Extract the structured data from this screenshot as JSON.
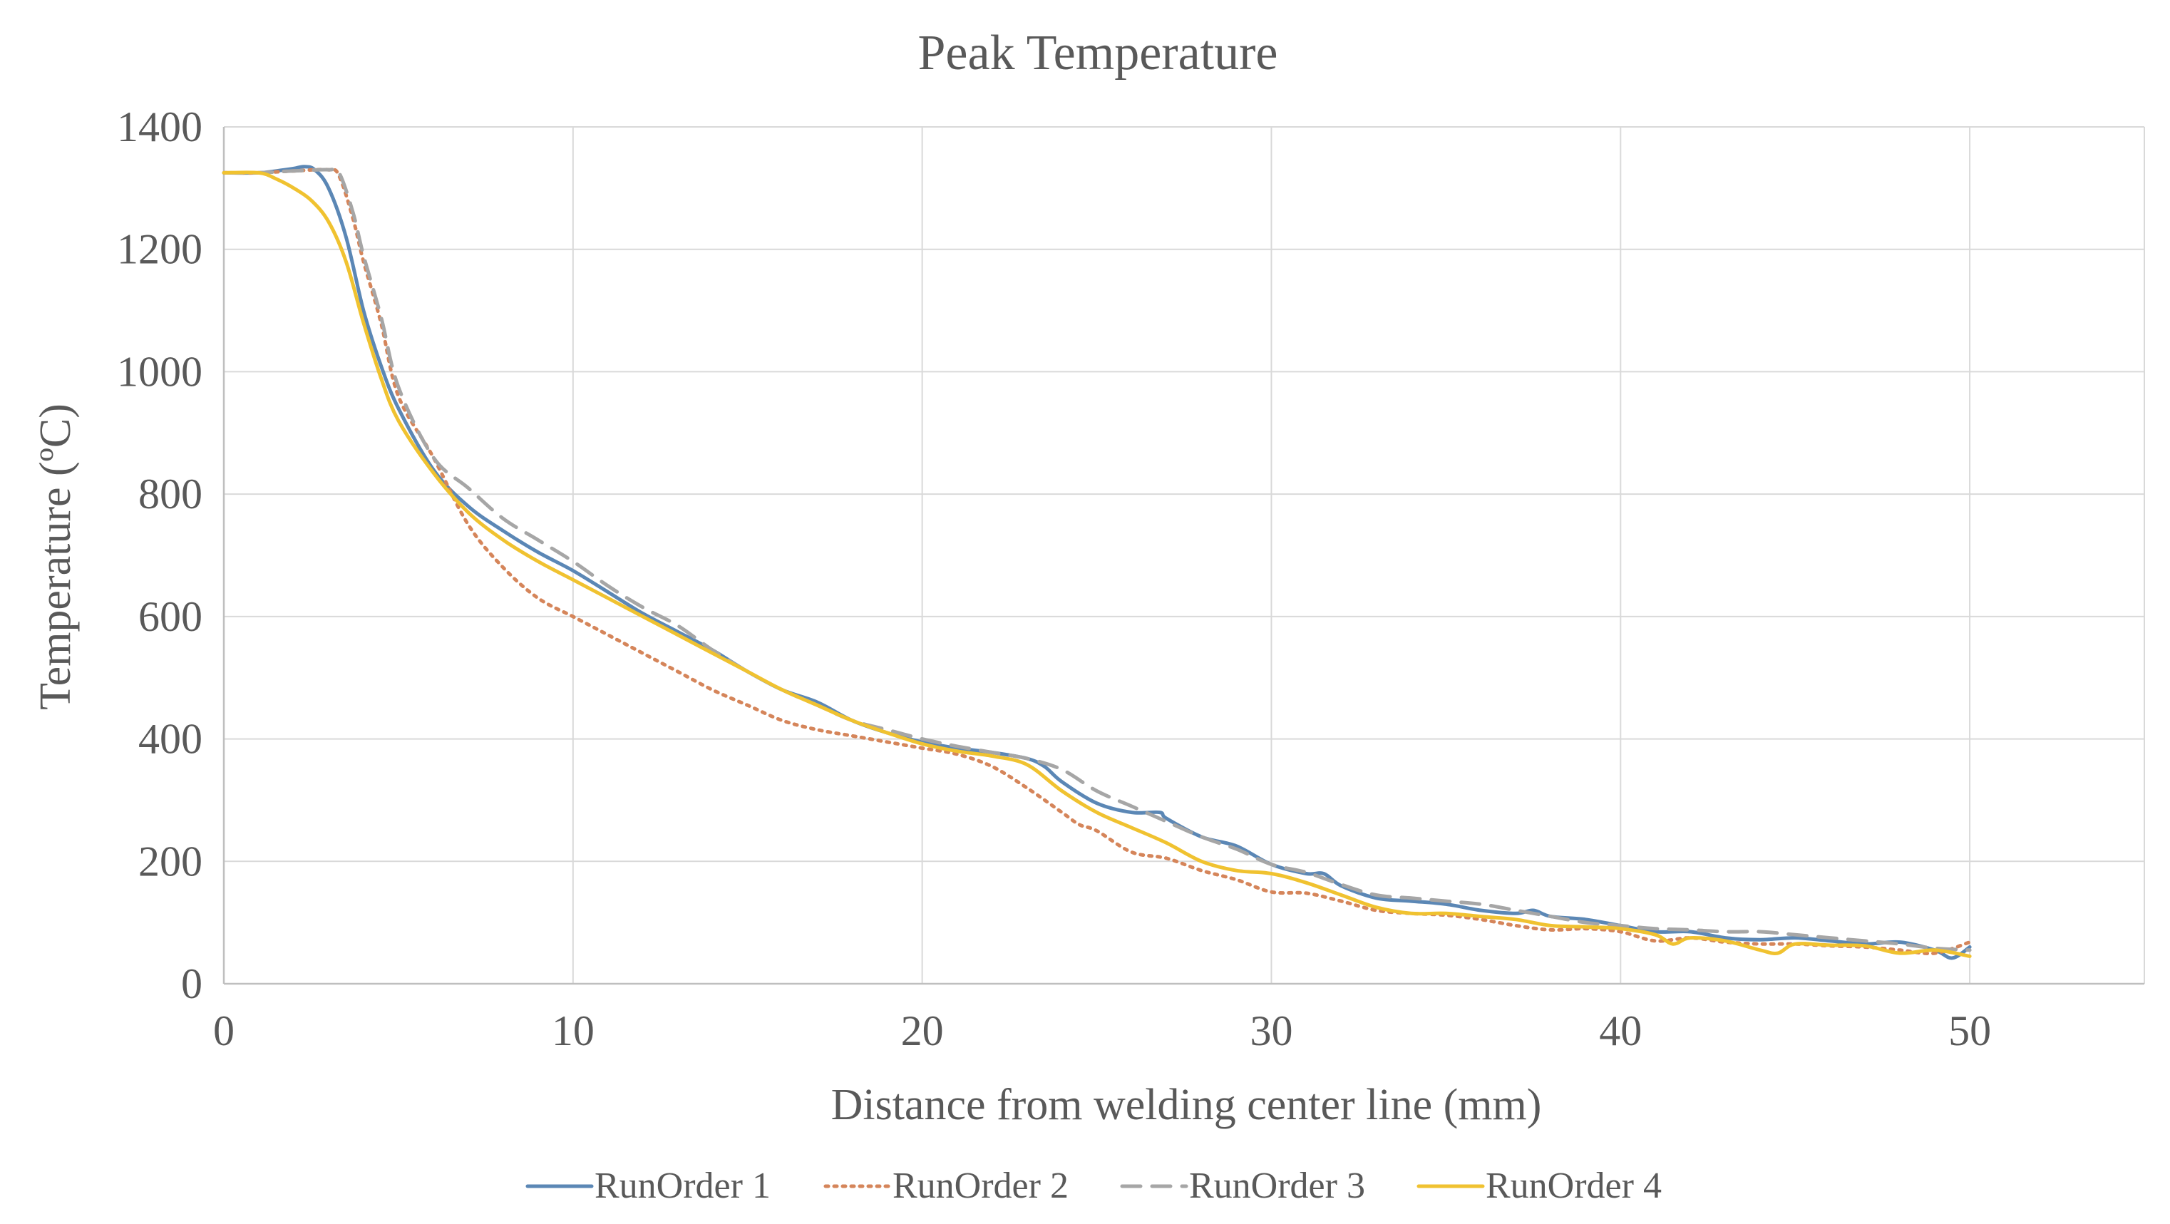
{
  "chart_data": {
    "type": "line",
    "title": "Peak Temperature",
    "xlabel": "Distance from welding center line (mm)",
    "ylabel": "Temperature (ºC)",
    "xlim": [
      0,
      55
    ],
    "ylim": [
      0,
      1400
    ],
    "xticks": [
      0,
      10,
      20,
      30,
      40,
      50
    ],
    "yticks": [
      0,
      200,
      400,
      600,
      800,
      1000,
      1200,
      1400
    ],
    "grid": true,
    "legend": "bottom-center",
    "series": [
      {
        "name": "RunOrder 1",
        "color": "#5b87b5",
        "dash": "solid",
        "x": [
          0,
          1,
          1.5,
          2,
          2.3,
          2.6,
          3,
          3.5,
          4,
          4.5,
          5,
          6,
          7,
          8,
          9,
          10,
          11,
          12,
          13,
          14,
          15,
          16,
          17,
          18,
          19,
          20,
          21,
          22,
          23,
          23.5,
          24,
          25,
          26,
          26.8,
          27,
          28,
          29,
          30,
          31,
          31.5,
          32,
          33,
          34,
          35,
          36,
          37,
          37.5,
          38,
          39,
          40,
          41,
          42,
          43,
          44,
          45,
          46,
          47,
          48,
          49,
          49.5,
          50
        ],
        "y": [
          1325,
          1325,
          1328,
          1332,
          1335,
          1330,
          1300,
          1220,
          1100,
          1010,
          940,
          840,
          780,
          740,
          705,
          675,
          640,
          605,
          575,
          545,
          510,
          480,
          460,
          430,
          410,
          395,
          385,
          378,
          368,
          355,
          330,
          295,
          280,
          280,
          270,
          240,
          225,
          195,
          180,
          180,
          160,
          140,
          135,
          130,
          120,
          115,
          120,
          110,
          105,
          95,
          85,
          85,
          75,
          72,
          75,
          70,
          65,
          68,
          55,
          42,
          60
        ]
      },
      {
        "name": "RunOrder 2",
        "color": "#d5855a",
        "dash": "dotted",
        "x": [
          0,
          1,
          2,
          3,
          3.3,
          3.7,
          4,
          4.5,
          5,
          6,
          7,
          8,
          9,
          10,
          11,
          12,
          13,
          14,
          15,
          16,
          17,
          18,
          19,
          20,
          21,
          22,
          23,
          24,
          24.5,
          25,
          26,
          27,
          28,
          29,
          30,
          31,
          32,
          33,
          34,
          35,
          36,
          37,
          38,
          39,
          40,
          41,
          42,
          43,
          44,
          45,
          46,
          47,
          48,
          49,
          50
        ],
        "y": [
          1325,
          1325,
          1328,
          1330,
          1320,
          1250,
          1180,
          1080,
          960,
          860,
          750,
          680,
          630,
          600,
          570,
          540,
          510,
          480,
          455,
          430,
          415,
          405,
          395,
          385,
          375,
          355,
          320,
          280,
          260,
          250,
          215,
          205,
          185,
          170,
          150,
          148,
          135,
          120,
          115,
          112,
          105,
          95,
          88,
          90,
          85,
          70,
          75,
          68,
          65,
          65,
          62,
          60,
          55,
          50,
          68
        ]
      },
      {
        "name": "RunOrder 3",
        "color": "#a6a6a6",
        "dash": "dashed",
        "x": [
          0,
          1,
          2,
          3,
          3.3,
          3.7,
          4,
          4.5,
          5,
          6,
          7,
          8,
          9,
          10,
          11,
          12,
          13,
          14,
          15,
          16,
          17,
          18,
          19,
          20,
          21,
          22,
          23,
          24,
          25,
          26,
          27,
          28,
          29,
          30,
          31,
          32,
          33,
          34,
          35,
          36,
          37,
          38,
          39,
          40,
          41,
          42,
          43,
          44,
          45,
          46,
          47,
          48,
          49,
          50
        ],
        "y": [
          1325,
          1325,
          1328,
          1330,
          1325,
          1260,
          1190,
          1090,
          975,
          860,
          810,
          760,
          725,
          690,
          650,
          615,
          585,
          545,
          510,
          480,
          455,
          430,
          415,
          400,
          388,
          378,
          368,
          350,
          315,
          290,
          265,
          240,
          220,
          195,
          182,
          162,
          145,
          140,
          135,
          130,
          120,
          110,
          100,
          95,
          90,
          88,
          85,
          85,
          80,
          75,
          70,
          65,
          58,
          55
        ]
      },
      {
        "name": "RunOrder 4",
        "color": "#f0c230",
        "dash": "solid",
        "x": [
          0,
          1,
          1.5,
          2,
          2.5,
          3,
          3.5,
          4,
          4.5,
          5,
          6,
          7,
          8,
          9,
          10,
          11,
          12,
          13,
          14,
          15,
          16,
          17,
          18,
          19,
          20,
          21,
          22,
          23,
          24,
          25,
          26,
          27,
          28,
          29,
          30,
          31,
          32,
          33,
          34,
          35,
          36,
          37,
          38,
          39,
          40,
          41,
          41.5,
          42,
          43,
          44,
          44.5,
          45,
          46,
          47,
          48,
          49,
          50
        ],
        "y": [
          1325,
          1325,
          1315,
          1300,
          1280,
          1245,
          1180,
          1080,
          990,
          920,
          835,
          770,
          725,
          690,
          660,
          630,
          600,
          570,
          540,
          510,
          480,
          455,
          430,
          410,
          392,
          380,
          372,
          358,
          315,
          280,
          255,
          230,
          200,
          185,
          180,
          165,
          145,
          125,
          115,
          115,
          110,
          105,
          95,
          93,
          90,
          80,
          65,
          75,
          70,
          55,
          50,
          65,
          63,
          62,
          50,
          55,
          45
        ]
      }
    ]
  }
}
